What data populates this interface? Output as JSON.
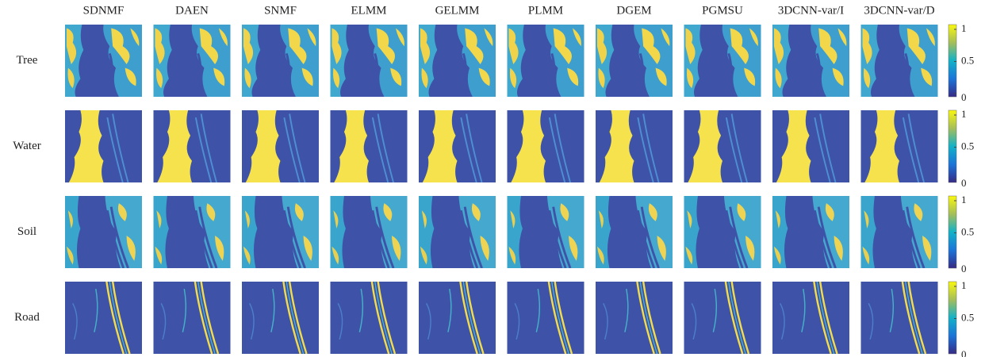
{
  "columns": [
    "SDNMF",
    "DAEN",
    "SNMF",
    "ELMM",
    "GELMM",
    "PLMM",
    "DGEM",
    "PGMSU",
    "3DCNN-var/I",
    "3DCNN-var/D"
  ],
  "rows": [
    "Tree",
    "Water",
    "Soil",
    "Road"
  ],
  "colorbar": {
    "ticks": [
      0,
      0.5,
      1
    ]
  }
}
